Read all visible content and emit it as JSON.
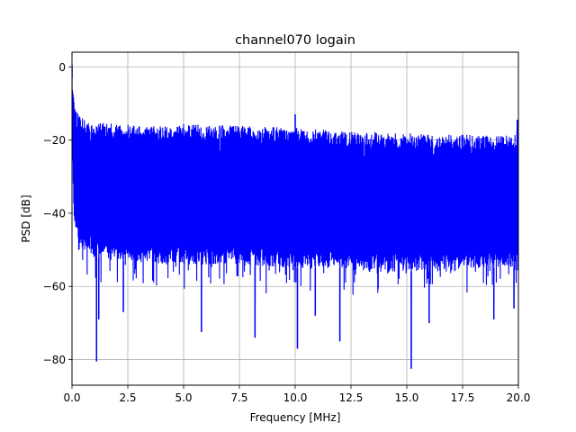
{
  "chart_data": {
    "type": "line",
    "title": "channel070 logain",
    "xlabel": "Frequency [MHz]",
    "ylabel": "PSD [dB]",
    "xlim": [
      0,
      20
    ],
    "ylim": [
      -87,
      4
    ],
    "x_ticks": [
      0.0,
      2.5,
      5.0,
      7.5,
      10.0,
      12.5,
      15.0,
      17.5,
      20.0
    ],
    "x_tick_labels": [
      "0.0",
      "2.5",
      "5.0",
      "7.5",
      "10.0",
      "12.5",
      "15.0",
      "17.5",
      "20.0"
    ],
    "y_ticks": [
      0,
      -20,
      -40,
      -60,
      -80
    ],
    "y_tick_labels": [
      "0",
      "−20",
      "−40",
      "−60",
      "−80"
    ],
    "grid": true,
    "series": [
      {
        "color": "#0000ff",
        "envelope_x": [
          0.0,
          0.05,
          0.1,
          0.2,
          0.3,
          0.5,
          1.0,
          2.0,
          3.0,
          4.0,
          5.0,
          6.0,
          7.0,
          8.0,
          9.0,
          10.0,
          10.5,
          11.0,
          12.0,
          13.0,
          14.0,
          15.0,
          16.0,
          17.0,
          18.0,
          19.0,
          19.9,
          20.0
        ],
        "envelope_upper": [
          0.0,
          -6.0,
          -9.0,
          -11.0,
          -13.0,
          -14.0,
          -15.0,
          -15.5,
          -16.0,
          -16.0,
          -15.5,
          -16.0,
          -16.0,
          -16.0,
          -16.5,
          -16.5,
          -17.0,
          -17.0,
          -17.5,
          -17.5,
          -18.0,
          -18.0,
          -18.5,
          -18.5,
          -18.5,
          -19.0,
          -18.5,
          -14.0
        ],
        "envelope_lower": [
          -15.0,
          -35.0,
          -42.0,
          -45.0,
          -48.0,
          -50.0,
          -52.0,
          -53.0,
          -53.0,
          -54.0,
          -54.0,
          -54.0,
          -54.0,
          -54.0,
          -55.0,
          -55.0,
          -55.0,
          -55.0,
          -55.0,
          -56.0,
          -56.0,
          -56.0,
          -56.0,
          -56.0,
          -55.0,
          -55.0,
          -55.0,
          -50.0
        ],
        "peaks": [
          {
            "x": 0.0,
            "y": 0.5
          },
          {
            "x": 10.0,
            "y": -13.0
          },
          {
            "x": 19.95,
            "y": -14.5
          }
        ],
        "dips": [
          {
            "x": 1.1,
            "y": -80.5
          },
          {
            "x": 1.2,
            "y": -69.0
          },
          {
            "x": 2.3,
            "y": -67.0
          },
          {
            "x": 5.8,
            "y": -72.5
          },
          {
            "x": 8.2,
            "y": -74.0
          },
          {
            "x": 10.1,
            "y": -77.0
          },
          {
            "x": 10.9,
            "y": -68.0
          },
          {
            "x": 12.0,
            "y": -75.0
          },
          {
            "x": 15.2,
            "y": -82.5
          },
          {
            "x": 16.0,
            "y": -70.0
          },
          {
            "x": 18.9,
            "y": -69.0
          },
          {
            "x": 19.8,
            "y": -66.0
          }
        ]
      }
    ]
  }
}
